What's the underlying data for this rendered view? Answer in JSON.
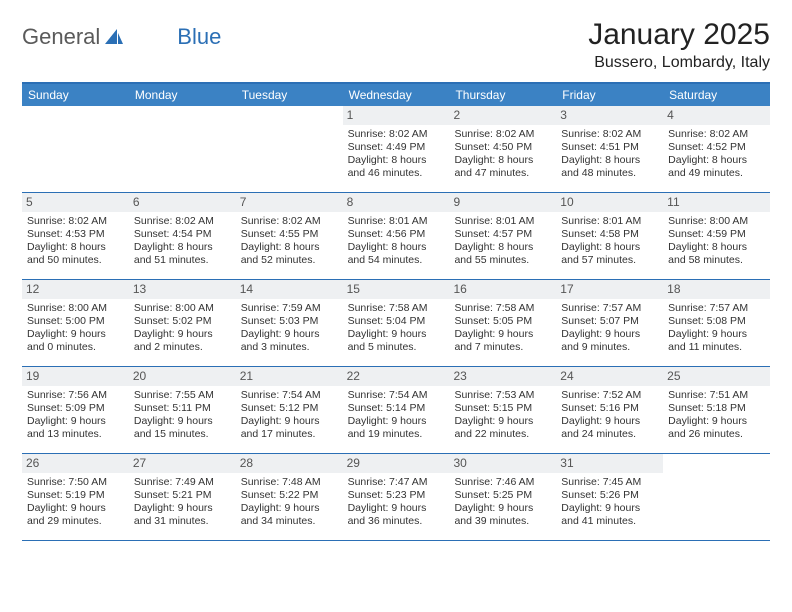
{
  "logo": {
    "text_a": "General",
    "text_b": "Blue",
    "icon_fill": "#2b6fb5"
  },
  "title": "January 2025",
  "location": "Bussero, Lombardy, Italy",
  "colors": {
    "header_bg": "#3b82c4",
    "header_border": "#2b6fb5",
    "daynum_bg": "#eef0f2",
    "text": "#333333",
    "title_color": "#222222"
  },
  "day_names": [
    "Sunday",
    "Monday",
    "Tuesday",
    "Wednesday",
    "Thursday",
    "Friday",
    "Saturday"
  ],
  "weeks": [
    [
      {
        "n": "",
        "lines": []
      },
      {
        "n": "",
        "lines": []
      },
      {
        "n": "",
        "lines": []
      },
      {
        "n": "1",
        "lines": [
          "Sunrise: 8:02 AM",
          "Sunset: 4:49 PM",
          "Daylight: 8 hours",
          "and 46 minutes."
        ]
      },
      {
        "n": "2",
        "lines": [
          "Sunrise: 8:02 AM",
          "Sunset: 4:50 PM",
          "Daylight: 8 hours",
          "and 47 minutes."
        ]
      },
      {
        "n": "3",
        "lines": [
          "Sunrise: 8:02 AM",
          "Sunset: 4:51 PM",
          "Daylight: 8 hours",
          "and 48 minutes."
        ]
      },
      {
        "n": "4",
        "lines": [
          "Sunrise: 8:02 AM",
          "Sunset: 4:52 PM",
          "Daylight: 8 hours",
          "and 49 minutes."
        ]
      }
    ],
    [
      {
        "n": "5",
        "lines": [
          "Sunrise: 8:02 AM",
          "Sunset: 4:53 PM",
          "Daylight: 8 hours",
          "and 50 minutes."
        ]
      },
      {
        "n": "6",
        "lines": [
          "Sunrise: 8:02 AM",
          "Sunset: 4:54 PM",
          "Daylight: 8 hours",
          "and 51 minutes."
        ]
      },
      {
        "n": "7",
        "lines": [
          "Sunrise: 8:02 AM",
          "Sunset: 4:55 PM",
          "Daylight: 8 hours",
          "and 52 minutes."
        ]
      },
      {
        "n": "8",
        "lines": [
          "Sunrise: 8:01 AM",
          "Sunset: 4:56 PM",
          "Daylight: 8 hours",
          "and 54 minutes."
        ]
      },
      {
        "n": "9",
        "lines": [
          "Sunrise: 8:01 AM",
          "Sunset: 4:57 PM",
          "Daylight: 8 hours",
          "and 55 minutes."
        ]
      },
      {
        "n": "10",
        "lines": [
          "Sunrise: 8:01 AM",
          "Sunset: 4:58 PM",
          "Daylight: 8 hours",
          "and 57 minutes."
        ]
      },
      {
        "n": "11",
        "lines": [
          "Sunrise: 8:00 AM",
          "Sunset: 4:59 PM",
          "Daylight: 8 hours",
          "and 58 minutes."
        ]
      }
    ],
    [
      {
        "n": "12",
        "lines": [
          "Sunrise: 8:00 AM",
          "Sunset: 5:00 PM",
          "Daylight: 9 hours",
          "and 0 minutes."
        ]
      },
      {
        "n": "13",
        "lines": [
          "Sunrise: 8:00 AM",
          "Sunset: 5:02 PM",
          "Daylight: 9 hours",
          "and 2 minutes."
        ]
      },
      {
        "n": "14",
        "lines": [
          "Sunrise: 7:59 AM",
          "Sunset: 5:03 PM",
          "Daylight: 9 hours",
          "and 3 minutes."
        ]
      },
      {
        "n": "15",
        "lines": [
          "Sunrise: 7:58 AM",
          "Sunset: 5:04 PM",
          "Daylight: 9 hours",
          "and 5 minutes."
        ]
      },
      {
        "n": "16",
        "lines": [
          "Sunrise: 7:58 AM",
          "Sunset: 5:05 PM",
          "Daylight: 9 hours",
          "and 7 minutes."
        ]
      },
      {
        "n": "17",
        "lines": [
          "Sunrise: 7:57 AM",
          "Sunset: 5:07 PM",
          "Daylight: 9 hours",
          "and 9 minutes."
        ]
      },
      {
        "n": "18",
        "lines": [
          "Sunrise: 7:57 AM",
          "Sunset: 5:08 PM",
          "Daylight: 9 hours",
          "and 11 minutes."
        ]
      }
    ],
    [
      {
        "n": "19",
        "lines": [
          "Sunrise: 7:56 AM",
          "Sunset: 5:09 PM",
          "Daylight: 9 hours",
          "and 13 minutes."
        ]
      },
      {
        "n": "20",
        "lines": [
          "Sunrise: 7:55 AM",
          "Sunset: 5:11 PM",
          "Daylight: 9 hours",
          "and 15 minutes."
        ]
      },
      {
        "n": "21",
        "lines": [
          "Sunrise: 7:54 AM",
          "Sunset: 5:12 PM",
          "Daylight: 9 hours",
          "and 17 minutes."
        ]
      },
      {
        "n": "22",
        "lines": [
          "Sunrise: 7:54 AM",
          "Sunset: 5:14 PM",
          "Daylight: 9 hours",
          "and 19 minutes."
        ]
      },
      {
        "n": "23",
        "lines": [
          "Sunrise: 7:53 AM",
          "Sunset: 5:15 PM",
          "Daylight: 9 hours",
          "and 22 minutes."
        ]
      },
      {
        "n": "24",
        "lines": [
          "Sunrise: 7:52 AM",
          "Sunset: 5:16 PM",
          "Daylight: 9 hours",
          "and 24 minutes."
        ]
      },
      {
        "n": "25",
        "lines": [
          "Sunrise: 7:51 AM",
          "Sunset: 5:18 PM",
          "Daylight: 9 hours",
          "and 26 minutes."
        ]
      }
    ],
    [
      {
        "n": "26",
        "lines": [
          "Sunrise: 7:50 AM",
          "Sunset: 5:19 PM",
          "Daylight: 9 hours",
          "and 29 minutes."
        ]
      },
      {
        "n": "27",
        "lines": [
          "Sunrise: 7:49 AM",
          "Sunset: 5:21 PM",
          "Daylight: 9 hours",
          "and 31 minutes."
        ]
      },
      {
        "n": "28",
        "lines": [
          "Sunrise: 7:48 AM",
          "Sunset: 5:22 PM",
          "Daylight: 9 hours",
          "and 34 minutes."
        ]
      },
      {
        "n": "29",
        "lines": [
          "Sunrise: 7:47 AM",
          "Sunset: 5:23 PM",
          "Daylight: 9 hours",
          "and 36 minutes."
        ]
      },
      {
        "n": "30",
        "lines": [
          "Sunrise: 7:46 AM",
          "Sunset: 5:25 PM",
          "Daylight: 9 hours",
          "and 39 minutes."
        ]
      },
      {
        "n": "31",
        "lines": [
          "Sunrise: 7:45 AM",
          "Sunset: 5:26 PM",
          "Daylight: 9 hours",
          "and 41 minutes."
        ]
      },
      {
        "n": "",
        "lines": []
      }
    ]
  ]
}
